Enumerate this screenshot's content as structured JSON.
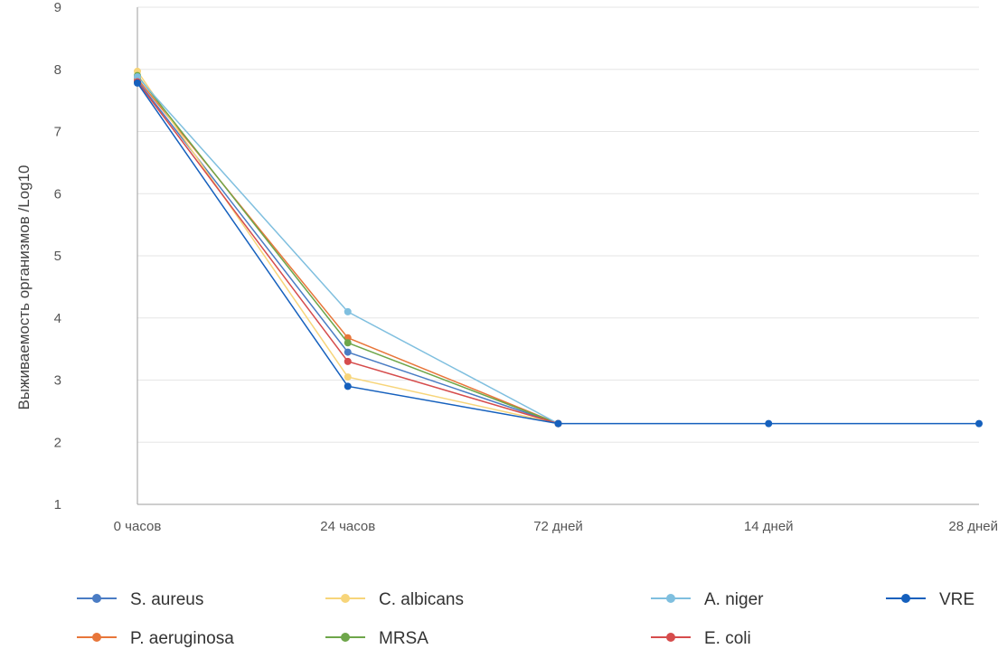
{
  "chart_data": {
    "type": "line",
    "title": "",
    "xlabel": "",
    "ylabel": "Выживаемость организмов /Log10",
    "categories": [
      "0 часов",
      "24 часов",
      "72 дней",
      "14 дней",
      "28 дней"
    ],
    "ylim": [
      1,
      9
    ],
    "yticks": [
      1,
      2,
      3,
      4,
      5,
      6,
      7,
      8,
      9
    ],
    "grid": "horizontal",
    "legend_position": "bottom",
    "series": [
      {
        "name": "S. aureus",
        "color": "#4a7cc4",
        "values": [
          7.82,
          3.45,
          2.3,
          null,
          null
        ]
      },
      {
        "name": "P. aeruginosa",
        "color": "#e8763a",
        "values": [
          7.85,
          3.68,
          2.3,
          null,
          null
        ]
      },
      {
        "name": "C. albicans",
        "color": "#f7d57a",
        "values": [
          7.97,
          3.05,
          2.3,
          null,
          null
        ]
      },
      {
        "name": "MRSA",
        "color": "#6ea64a",
        "values": [
          7.9,
          3.6,
          2.3,
          null,
          null
        ]
      },
      {
        "name": "A. niger",
        "color": "#7fbfdf",
        "values": [
          7.88,
          4.1,
          2.3,
          null,
          null
        ]
      },
      {
        "name": "E. coli",
        "color": "#d64c4c",
        "values": [
          7.8,
          3.3,
          2.3,
          null,
          null
        ]
      },
      {
        "name": "VRE",
        "color": "#1560bd",
        "values": [
          7.78,
          2.9,
          2.3,
          2.3,
          2.3
        ]
      }
    ]
  }
}
